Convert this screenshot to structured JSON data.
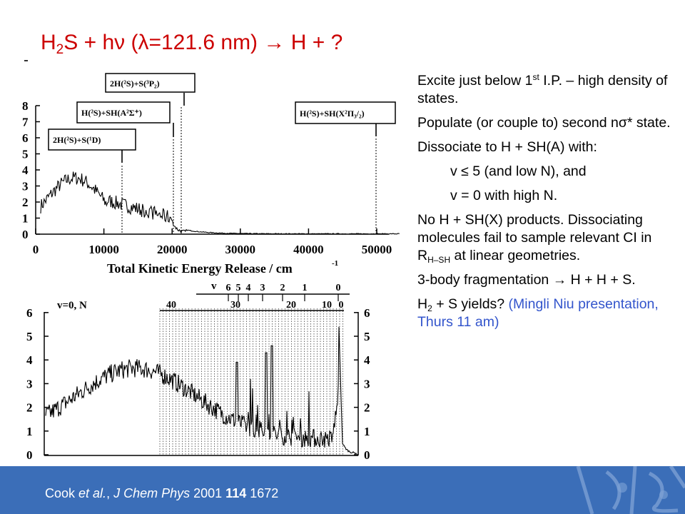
{
  "title": {
    "pre": "H",
    "sub": "2",
    "post": "S + hν (λ=121.6 nm) → H + ?"
  },
  "notes": {
    "p1": {
      "a": "Excite just below 1",
      "sup": "st",
      "b": " I.P. – high density of states."
    },
    "p2": "Populate (or couple to) second nσ* state.",
    "p3": "Dissociate to H + SH(A) with:",
    "p4": "v ≤ 5 (and low N), and",
    "p5": "v = 0 with high N.",
    "p6": {
      "a": "No H + SH(X) products. Dissociating molecules fail to sample relevant CI in R",
      "sub": "H–SH",
      "b": " at linear geometries."
    },
    "p7": "3-body fragmentation → H + H + S.",
    "p8": {
      "a": "H",
      "sub": "2",
      "b": " + S yields?  ",
      "blue": "(Mingli Niu presentation, Thurs 11 am)"
    }
  },
  "footer": {
    "a": "Cook ",
    "b": "et al.",
    "c": ", ",
    "d": "J Chem Phys",
    "e": " 2001 ",
    "f": "114",
    "g": " 1672"
  },
  "figure_top": {
    "y_ticks": [
      "0",
      "1",
      "2",
      "3",
      "4",
      "5",
      "6",
      "7",
      "8"
    ],
    "x_ticks": [
      "0",
      "10000",
      "20000",
      "30000",
      "40000",
      "50000"
    ],
    "xlabel": "Total Kinetic Energy Release / cm",
    "xlabel_sup": "-1",
    "labels": [
      "2H(²S)+S(³P₂)",
      "H(²S)+SH(A²Σ⁺)",
      "2H(²S)+S(¹D)",
      "H(²S)+SH(X²Π₃/₂)"
    ]
  },
  "figure_bottom": {
    "v_label": "v",
    "v_ticks": [
      "6",
      "5",
      "4",
      "3",
      "2",
      "1",
      "0"
    ],
    "n_label": "v=0, N",
    "n_ticks": [
      "40",
      "30",
      "20",
      "10",
      "0"
    ],
    "y_ticks": [
      "0",
      "1",
      "2",
      "3",
      "4",
      "5",
      "6"
    ]
  },
  "colors": {
    "title": "#cc0000",
    "footer_bg": "#3b6eb8",
    "link_blue": "#3355cc"
  }
}
